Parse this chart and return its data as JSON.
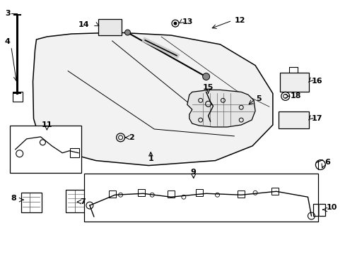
{
  "bg_color": "#ffffff",
  "line_color": "#000000",
  "label_fontsize": 8.0,
  "figsize": [
    4.89,
    3.6
  ],
  "dpi": 100
}
